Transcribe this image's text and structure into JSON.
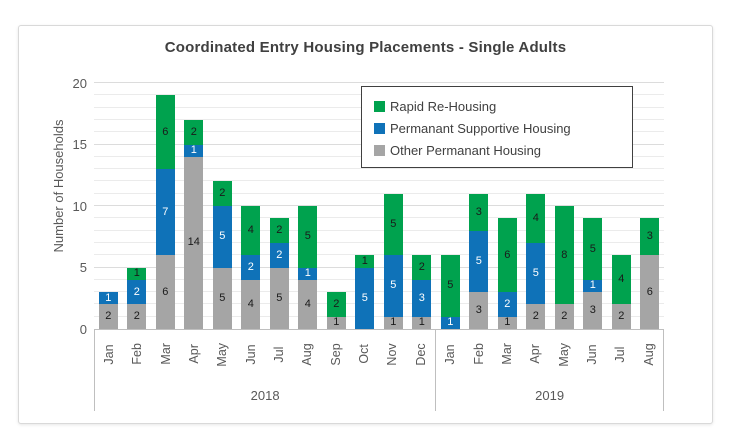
{
  "title": "Coordinated Entry Housing Placements - Single Adults",
  "chart_data": {
    "type": "bar",
    "stacked": true,
    "title": "Coordinated Entry Housing Placements - Single Adults",
    "xlabel": "",
    "ylabel": "Number of Households",
    "ylim": [
      0,
      20
    ],
    "yticks": [
      0,
      5,
      10,
      15,
      20
    ],
    "gridlines": "horizontal, minor every 1, major every 5",
    "legend_position": "top-right inside plot, black border",
    "groups": [
      {
        "label": "2018",
        "count": 12
      },
      {
        "label": "2019",
        "count": 8
      }
    ],
    "categories": [
      "Jan",
      "Feb",
      "Mar",
      "Apr",
      "May",
      "Jun",
      "Jul",
      "Aug",
      "Sep",
      "Oct",
      "Nov",
      "Dec",
      "Jan",
      "Feb",
      "Mar",
      "Apr",
      "May",
      "Jun",
      "Jul",
      "Aug"
    ],
    "series": [
      {
        "name": "Rapid Re-Housing",
        "color": "#00a24e",
        "label_text_color": "#1a1a1a",
        "values": [
          0,
          1,
          6,
          2,
          2,
          4,
          2,
          5,
          2,
          1,
          5,
          2,
          5,
          3,
          6,
          4,
          8,
          5,
          4,
          3
        ]
      },
      {
        "name": "Permanant Supportive Housing",
        "color": "#0f72b8",
        "label_text_color": "#ffffff",
        "values": [
          1,
          2,
          7,
          1,
          5,
          2,
          2,
          1,
          0,
          5,
          5,
          3,
          1,
          5,
          2,
          5,
          0,
          1,
          0,
          0
        ]
      },
      {
        "name": "Other Permanant Housing",
        "color": "#a5a5a5",
        "label_text_color": "#1a1a1a",
        "values": [
          2,
          2,
          6,
          14,
          5,
          4,
          5,
          4,
          1,
          0,
          1,
          1,
          0,
          3,
          1,
          2,
          2,
          3,
          2,
          6
        ]
      }
    ],
    "stack_order_bottom_to_top": [
      "Other Permanant Housing",
      "Permanant Supportive Housing",
      "Rapid Re-Housing"
    ],
    "totals": [
      3,
      5,
      19,
      17,
      12,
      10,
      9,
      10,
      3,
      6,
      11,
      6,
      6,
      11,
      9,
      11,
      10,
      9,
      6,
      9
    ]
  },
  "colors": {
    "green": "#00a24e",
    "blue": "#0f72b8",
    "gray": "#a5a5a5",
    "title_text": "#404040",
    "axis_text": "#595959",
    "gridline_minor": "#ebebeb",
    "gridline_major": "#dcdcdc",
    "axis_line": "#bfbfbf",
    "card_border": "#d9d9d9",
    "legend_border": "#404040"
  }
}
